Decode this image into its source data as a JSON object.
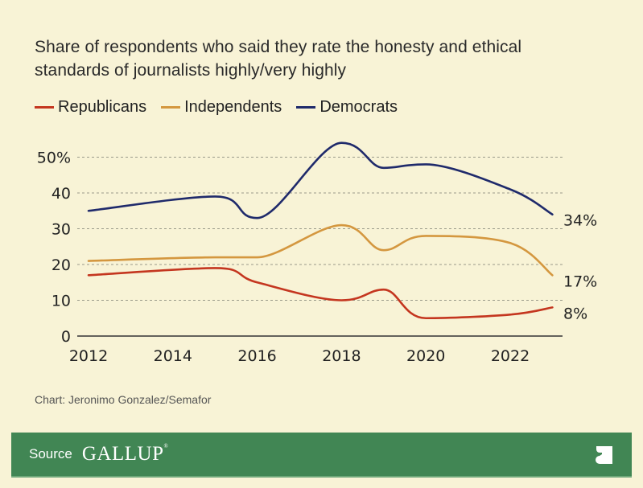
{
  "chart_data": {
    "type": "line",
    "title": "Share of respondents who said they rate the honesty and ethical standards of journalists highly/very highly",
    "xlabel": "",
    "ylabel": "",
    "ylim": [
      0,
      55
    ],
    "xlim": [
      2012,
      2023
    ],
    "x_ticks": [
      "2012",
      "2014",
      "2016",
      "2018",
      "2020",
      "2022"
    ],
    "y_ticks": [
      "0",
      "10",
      "20",
      "30",
      "40",
      "50%"
    ],
    "grid": true,
    "legend_position": "top-left",
    "x": [
      2012,
      2015,
      2016,
      2018,
      2019,
      2020,
      2022,
      2023
    ],
    "series": [
      {
        "name": "Republicans",
        "color": "#c4361f",
        "values": [
          17,
          19,
          15,
          10,
          13,
          5,
          6,
          8
        ],
        "end_label": "8%"
      },
      {
        "name": "Independents",
        "color": "#d4973f",
        "values": [
          21,
          22,
          22,
          31,
          24,
          28,
          26,
          17
        ],
        "end_label": "17%"
      },
      {
        "name": "Democrats",
        "color": "#1f2a6b",
        "values": [
          35,
          39,
          33,
          54,
          47,
          48,
          41,
          34
        ],
        "end_label": "34%"
      }
    ]
  },
  "credit": "Chart: Jeronimo Gonzalez/Semafor",
  "footer": {
    "source_label": "Source",
    "source_name": "GALLUP",
    "source_mark": "®",
    "logo": "semafor-s-logo",
    "background": "#418654"
  }
}
